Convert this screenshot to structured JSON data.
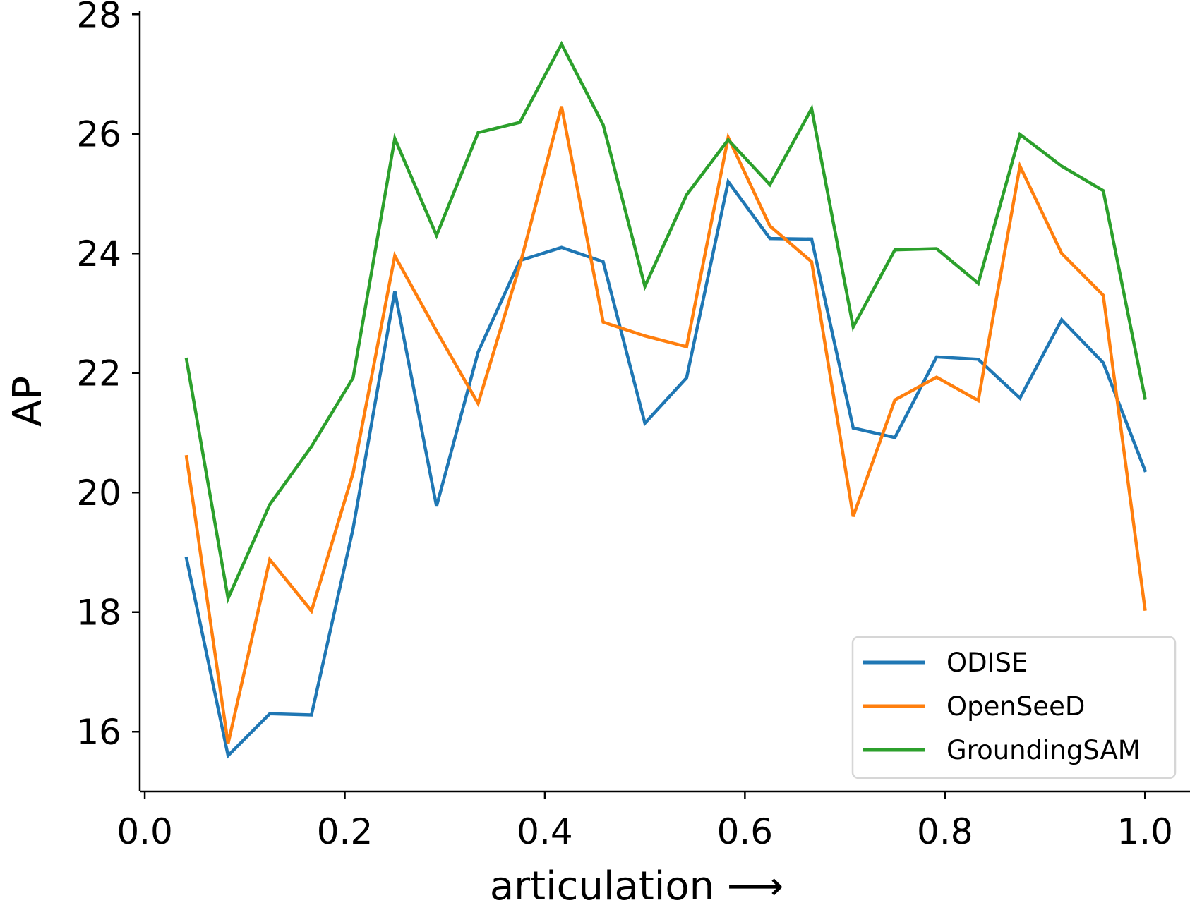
{
  "chart_data": {
    "type": "line",
    "title": "",
    "xlabel": "articulation ⟶",
    "ylabel": "AP",
    "xlim": [
      -0.005,
      1.045
    ],
    "ylim": [
      15.0,
      28.05
    ],
    "xticks": [
      0.0,
      0.2,
      0.4,
      0.6,
      0.8,
      1.0
    ],
    "xtick_labels": [
      "0.0",
      "0.2",
      "0.4",
      "0.6",
      "0.8",
      "1.0"
    ],
    "yticks": [
      16,
      18,
      20,
      22,
      24,
      26,
      28
    ],
    "ytick_labels": [
      "16",
      "18",
      "20",
      "22",
      "24",
      "26",
      "28"
    ],
    "grid": false,
    "legend_position": "bottom-right",
    "x": [
      0.0417,
      0.0833,
      0.125,
      0.1667,
      0.2083,
      0.25,
      0.2917,
      0.3333,
      0.375,
      0.4167,
      0.4583,
      0.5,
      0.5417,
      0.5833,
      0.625,
      0.6667,
      0.7083,
      0.75,
      0.7917,
      0.8333,
      0.875,
      0.9167,
      0.9583,
      1.0
    ],
    "series": [
      {
        "name": "ODISE",
        "color": "#1f77b4",
        "values": [
          18.9,
          15.6,
          16.3,
          16.28,
          19.4,
          23.37,
          19.77,
          22.35,
          23.88,
          24.1,
          23.86,
          21.16,
          21.92,
          25.2,
          24.25,
          24.24,
          21.08,
          20.92,
          22.27,
          22.23,
          21.58,
          22.89,
          22.17,
          20.37
        ]
      },
      {
        "name": "OpenSeeD",
        "color": "#ff7f0e",
        "values": [
          20.6,
          15.8,
          18.88,
          18.02,
          20.33,
          23.96,
          22.7,
          21.49,
          23.8,
          26.46,
          22.85,
          22.62,
          22.44,
          25.94,
          24.46,
          23.86,
          19.6,
          21.55,
          21.93,
          21.54,
          25.46,
          24.0,
          23.3,
          18.05
        ]
      },
      {
        "name": "GroundingSAM",
        "color": "#2ca02c",
        "values": [
          22.23,
          18.23,
          19.8,
          20.77,
          21.92,
          25.92,
          24.3,
          26.02,
          26.19,
          27.5,
          26.15,
          23.45,
          24.98,
          25.9,
          25.15,
          26.42,
          22.77,
          24.06,
          24.08,
          23.5,
          25.99,
          25.46,
          25.05,
          21.58
        ]
      }
    ]
  }
}
